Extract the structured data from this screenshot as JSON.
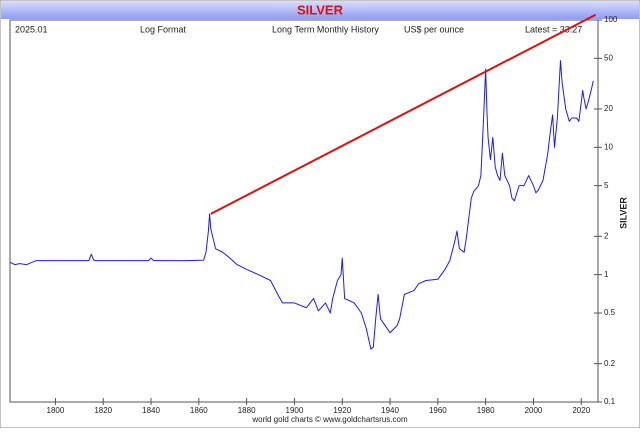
{
  "chart_data": {
    "type": "line",
    "title": "SILVER",
    "date": "2025.01",
    "scale_note": "Log Format",
    "subtitle": "Long Term Monthly History",
    "units": "US$ per ounce",
    "latest": "Latest = 33.27",
    "ylabel": "SILVER",
    "source": "world gold charts © www.goldchartsrus.com",
    "log_scale": true,
    "yaxis_side": "right",
    "grid": false,
    "xlim": [
      1781,
      2027
    ],
    "ylim": [
      0.1,
      100
    ],
    "xticks": [
      1800,
      1820,
      1840,
      1860,
      1880,
      1900,
      1920,
      1940,
      1960,
      1980,
      2000,
      2020
    ],
    "yticks": [
      0.1,
      0.2,
      0.5,
      1,
      2,
      5,
      10,
      20,
      50,
      100
    ],
    "series": [
      {
        "color": "#1a1aff",
        "x": [
          1781,
          1783,
          1785,
          1788,
          1792,
          1800,
          1814,
          1815,
          1816,
          1817,
          1830,
          1839,
          1840,
          1841,
          1855,
          1862,
          1863,
          1864,
          1864.5,
          1865,
          1867,
          1870,
          1873,
          1876,
          1880,
          1885,
          1890,
          1893,
          1895,
          1900,
          1905,
          1908,
          1910,
          1913,
          1915,
          1916,
          1918,
          1919.5,
          1920,
          1921,
          1925,
          1928,
          1930,
          1932,
          1933,
          1934,
          1935,
          1936,
          1940,
          1943,
          1944,
          1946,
          1950,
          1952,
          1955,
          1960,
          1963,
          1965,
          1967,
          1968,
          1969,
          1971,
          1972,
          1974,
          1975,
          1977,
          1978,
          1979,
          1980,
          1980.5,
          1981,
          1982,
          1983,
          1984,
          1985,
          1986,
          1987,
          1988,
          1990,
          1991,
          1992,
          1994,
          1996,
          1998,
          2000,
          2001,
          2002,
          2004,
          2006,
          2007,
          2008,
          2008.8,
          2010,
          2011.3,
          2012,
          2013.5,
          2015,
          2016,
          2018,
          2019,
          2020.6,
          2021,
          2022,
          2023,
          2024.5,
          2025
        ],
        "values": [
          1.25,
          1.2,
          1.22,
          1.2,
          1.29,
          1.29,
          1.29,
          1.45,
          1.3,
          1.29,
          1.29,
          1.29,
          1.35,
          1.29,
          1.29,
          1.3,
          1.5,
          2.2,
          3.0,
          2.3,
          1.6,
          1.5,
          1.35,
          1.2,
          1.1,
          1.0,
          0.9,
          0.7,
          0.6,
          0.6,
          0.55,
          0.65,
          0.52,
          0.6,
          0.5,
          0.65,
          0.9,
          1.0,
          1.35,
          0.65,
          0.6,
          0.5,
          0.38,
          0.26,
          0.27,
          0.45,
          0.7,
          0.45,
          0.35,
          0.4,
          0.45,
          0.7,
          0.75,
          0.85,
          0.9,
          0.92,
          1.1,
          1.29,
          1.8,
          2.2,
          1.6,
          1.5,
          2.0,
          4.0,
          4.5,
          5.0,
          6.0,
          15,
          41,
          20,
          12,
          8,
          12,
          7,
          6,
          5.5,
          9,
          6,
          5,
          4,
          3.8,
          5,
          5,
          6,
          5,
          4.4,
          4.6,
          5.5,
          9,
          13,
          18,
          10,
          17,
          48,
          32,
          20,
          16,
          17,
          17,
          16,
          28,
          25,
          20,
          23,
          30,
          33.27
        ]
      },
      {
        "color": "#e01010",
        "x": [
          1865,
          2026
        ],
        "values": [
          3.0,
          110
        ]
      }
    ]
  }
}
